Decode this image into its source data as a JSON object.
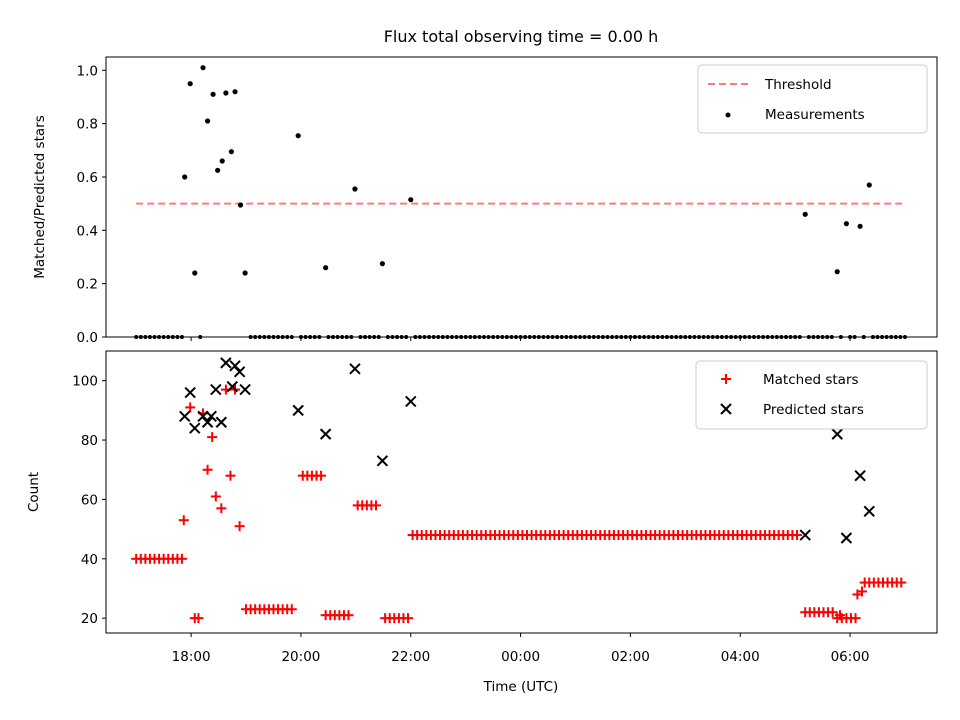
{
  "title": "Flux total observing time = 0.00 h",
  "colors": {
    "threshold": "#ff7a7a",
    "measurement": "#000000",
    "matched": "#ff0000",
    "predicted": "#000000"
  },
  "chart_data": [
    {
      "type": "scatter",
      "panel": "top",
      "ylabel": "Matched/Predicted stars",
      "xlabel": "",
      "xlim": [
        "17:00",
        "07:00"
      ],
      "ylim": [
        0.0,
        1.05
      ],
      "yticks": [
        "0.0",
        "0.2",
        "0.4",
        "0.6",
        "0.8",
        "1.0"
      ],
      "legend_position": "upper right",
      "threshold": {
        "name": "Threshold",
        "value": 0.5,
        "x_range": [
          "17:00",
          "07:00"
        ],
        "style": "dashed"
      },
      "series": [
        {
          "name": "Measurements",
          "marker": "dot",
          "points": [
            {
              "x": "17:53",
              "y": 0.6
            },
            {
              "x": "17:59",
              "y": 0.95
            },
            {
              "x": "18:04",
              "y": 0.24
            },
            {
              "x": "18:13",
              "y": 1.01
            },
            {
              "x": "18:18",
              "y": 0.81
            },
            {
              "x": "18:24",
              "y": 0.91
            },
            {
              "x": "18:29",
              "y": 0.625
            },
            {
              "x": "18:34",
              "y": 0.66
            },
            {
              "x": "18:38",
              "y": 0.915
            },
            {
              "x": "18:44",
              "y": 0.695
            },
            {
              "x": "18:48",
              "y": 0.92
            },
            {
              "x": "18:54",
              "y": 0.495
            },
            {
              "x": "18:59",
              "y": 0.24
            },
            {
              "x": "19:57",
              "y": 0.755
            },
            {
              "x": "20:27",
              "y": 0.26
            },
            {
              "x": "20:59",
              "y": 0.555
            },
            {
              "x": "21:29",
              "y": 0.275
            },
            {
              "x": "22:00",
              "y": 0.515
            },
            {
              "x": "05:11",
              "y": 0.46
            },
            {
              "x": "05:46",
              "y": 0.245
            },
            {
              "x": "05:56",
              "y": 0.425
            },
            {
              "x": "06:11",
              "y": 0.415
            },
            {
              "x": "06:21",
              "y": 0.57
            }
          ],
          "zero_points_range": [
            "17:00",
            "07:00"
          ],
          "zero_points_interval_min": 5
        }
      ]
    },
    {
      "type": "scatter",
      "panel": "bottom",
      "ylabel": "Count",
      "xlabel": "Time (UTC)",
      "xlim": [
        "16:27",
        "07:35"
      ],
      "ylim": [
        15,
        110
      ],
      "yticks": [
        "20",
        "40",
        "60",
        "80",
        "100"
      ],
      "xticks": [
        "18:00",
        "20:00",
        "22:00",
        "00:00",
        "02:00",
        "04:00",
        "06:00"
      ],
      "legend_position": "upper right",
      "series": [
        {
          "name": "Matched stars",
          "marker": "plus",
          "segments": [
            {
              "from": "17:00",
              "to": "17:52",
              "y": 40
            },
            {
              "from": "19:00",
              "to": "19:52",
              "y": 23
            },
            {
              "from": "20:02",
              "to": "20:22",
              "y": 68
            },
            {
              "from": "20:27",
              "to": "20:52",
              "y": 21
            },
            {
              "from": "21:02",
              "to": "21:22",
              "y": 58
            },
            {
              "from": "21:32",
              "to": "21:57",
              "y": 20
            },
            {
              "from": "22:02",
              "to": "05:06",
              "y": 48
            },
            {
              "from": "05:11",
              "to": "05:41",
              "y": 22
            },
            {
              "from": "05:46",
              "to": "06:06",
              "y": 20
            },
            {
              "from": "06:16",
              "to": "06:56",
              "y": 32
            }
          ],
          "points": [
            {
              "x": "17:52",
              "y": 53
            },
            {
              "x": "17:59",
              "y": 91
            },
            {
              "x": "18:04",
              "y": 20
            },
            {
              "x": "18:08",
              "y": 20
            },
            {
              "x": "18:13",
              "y": 89
            },
            {
              "x": "18:18",
              "y": 70
            },
            {
              "x": "18:23",
              "y": 81
            },
            {
              "x": "18:27",
              "y": 61
            },
            {
              "x": "18:33",
              "y": 57
            },
            {
              "x": "18:38",
              "y": 97
            },
            {
              "x": "18:43",
              "y": 68
            },
            {
              "x": "18:48",
              "y": 97
            },
            {
              "x": "18:53",
              "y": 51
            },
            {
              "x": "05:49",
              "y": 21
            },
            {
              "x": "06:08",
              "y": 28
            },
            {
              "x": "06:13",
              "y": 29
            }
          ]
        },
        {
          "name": "Predicted stars",
          "marker": "x",
          "points": [
            {
              "x": "17:53",
              "y": 88
            },
            {
              "x": "17:59",
              "y": 96
            },
            {
              "x": "18:04",
              "y": 84
            },
            {
              "x": "18:13",
              "y": 88
            },
            {
              "x": "18:18",
              "y": 86
            },
            {
              "x": "18:22",
              "y": 88
            },
            {
              "x": "18:27",
              "y": 97
            },
            {
              "x": "18:33",
              "y": 86
            },
            {
              "x": "18:38",
              "y": 106
            },
            {
              "x": "18:45",
              "y": 98
            },
            {
              "x": "18:48",
              "y": 105
            },
            {
              "x": "18:53",
              "y": 103
            },
            {
              "x": "18:59",
              "y": 97
            },
            {
              "x": "19:57",
              "y": 90
            },
            {
              "x": "20:27",
              "y": 82
            },
            {
              "x": "20:59",
              "y": 104
            },
            {
              "x": "21:29",
              "y": 73
            },
            {
              "x": "22:00",
              "y": 93
            },
            {
              "x": "05:11",
              "y": 48
            },
            {
              "x": "05:46",
              "y": 82
            },
            {
              "x": "05:56",
              "y": 47
            },
            {
              "x": "06:11",
              "y": 68
            },
            {
              "x": "06:21",
              "y": 56
            }
          ]
        }
      ]
    }
  ]
}
